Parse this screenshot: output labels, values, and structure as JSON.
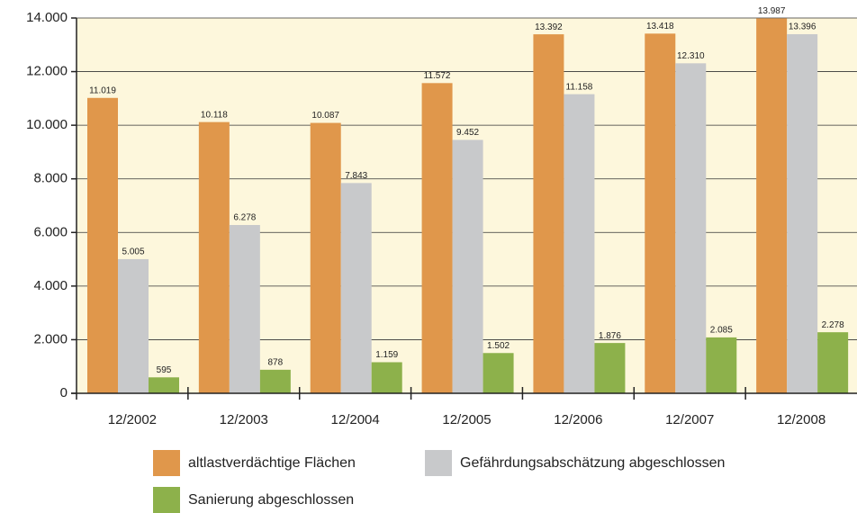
{
  "chart_data": {
    "type": "bar",
    "categories": [
      "12/2002",
      "12/2003",
      "12/2004",
      "12/2005",
      "12/2006",
      "12/2007",
      "12/2008"
    ],
    "series": [
      {
        "name": "altlastverdächtige Flächen",
        "color": "#e0974b",
        "values": [
          11019,
          10118,
          10087,
          11572,
          13392,
          13418,
          13987
        ],
        "value_labels": [
          "11.019",
          "10.118",
          "10.087",
          "11.572",
          "13.392",
          "13.418",
          "13.987"
        ]
      },
      {
        "name": "Gefährdungsabschätzung abgeschlossen",
        "color": "#c8c9cb",
        "values": [
          5005,
          6278,
          7843,
          9452,
          11158,
          12310,
          13396
        ],
        "value_labels": [
          "5.005",
          "6.278",
          "7.843",
          "9.452",
          "11.158",
          "12.310",
          "13.396"
        ]
      },
      {
        "name": "Sanierung abgeschlossen",
        "color": "#8db14b",
        "values": [
          595,
          878,
          1159,
          1502,
          1876,
          2085,
          2278
        ],
        "value_labels": [
          "595",
          "878",
          "1.159",
          "1.502",
          "1.876",
          "2.085",
          "2.278"
        ]
      }
    ],
    "ylim": [
      0,
      14000
    ],
    "yticks": [
      0,
      {
        "value": 2000,
        "label": "2.000"
      },
      {
        "value": 4000,
        "label": "4.000"
      },
      {
        "value": 6000,
        "label": "6.000"
      },
      {
        "value": 8000,
        "label": "8.000"
      },
      {
        "value": 10000,
        "label": "10.000"
      },
      {
        "value": 12000,
        "label": "12.000"
      },
      {
        "value": 14000,
        "label": "14.000"
      }
    ],
    "grid": true
  }
}
